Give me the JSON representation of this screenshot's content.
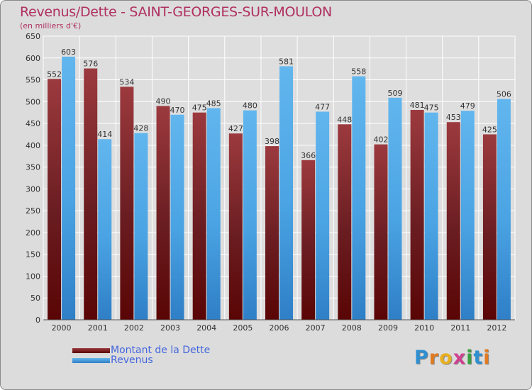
{
  "chart_data": {
    "type": "bar",
    "title": "Revenus/Dette - SAINT-GEORGES-SUR-MOULON",
    "subtitle": "(en milliers d'€)",
    "categories": [
      "2000",
      "2001",
      "2002",
      "2003",
      "2004",
      "2005",
      "2006",
      "2007",
      "2008",
      "2009",
      "2010",
      "2011",
      "2012"
    ],
    "series": [
      {
        "name": "Montant de la Dette",
        "color": "#7a1f24",
        "values": [
          552,
          576,
          534,
          490,
          475,
          427,
          398,
          366,
          448,
          402,
          481,
          453,
          425
        ]
      },
      {
        "name": "Revenus",
        "color": "#4aa3e3",
        "values": [
          603,
          414,
          428,
          470,
          485,
          480,
          581,
          477,
          558,
          509,
          475,
          479,
          506
        ]
      }
    ],
    "ylim": [
      0,
      650
    ],
    "yticks": [
      0,
      50,
      100,
      150,
      200,
      250,
      300,
      350,
      400,
      450,
      500,
      550,
      600,
      650
    ],
    "grid": true,
    "legend": "bottom-left"
  },
  "logo": {
    "letters": [
      {
        "ch": "P",
        "color": "#2f8fd0"
      },
      {
        "ch": "r",
        "color": "#e07a20"
      },
      {
        "ch": "o",
        "color": "#e8b020"
      },
      {
        "ch": "x",
        "color": "#d04090"
      },
      {
        "ch": "i",
        "color": "#3aa040"
      },
      {
        "ch": "t",
        "color": "#2f8fd0"
      },
      {
        "ch": "i",
        "color": "#e07a20"
      }
    ]
  }
}
